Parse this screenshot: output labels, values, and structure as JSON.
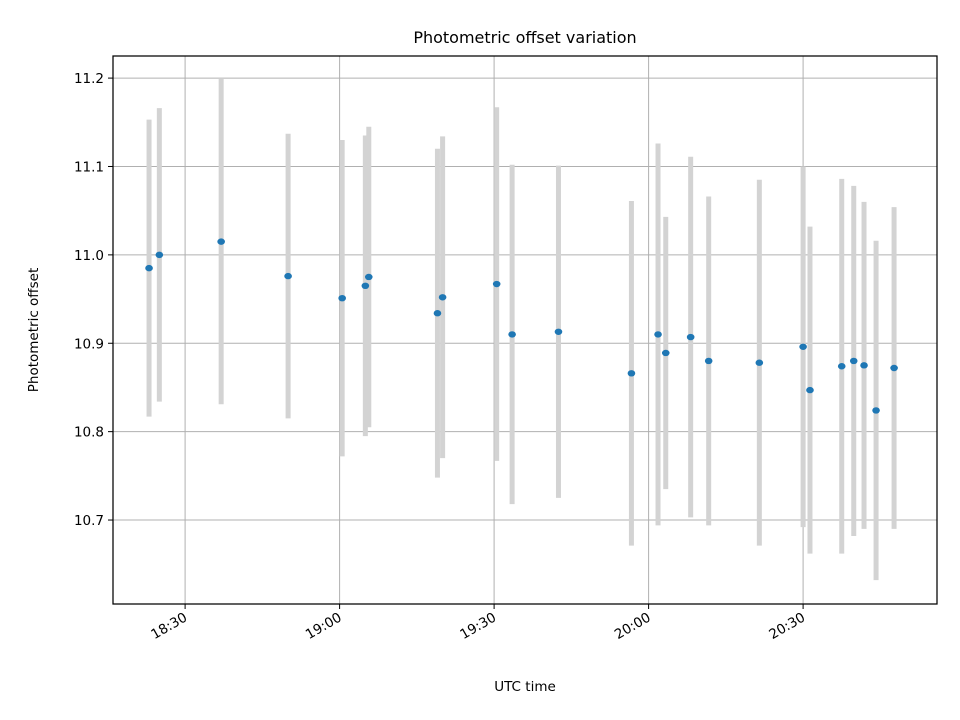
{
  "chart_data": {
    "type": "scatter",
    "title": "Photometric offset variation",
    "xlabel": "UTC time",
    "ylabel": "Photometric offset",
    "x_ticks": [
      "18:30",
      "19:00",
      "19:30",
      "20:00",
      "20:30"
    ],
    "y_ticks": [
      10.7,
      10.8,
      10.9,
      11.0,
      11.1,
      11.2
    ],
    "xlim": [
      "18:16",
      "20:56"
    ],
    "ylim": [
      10.605,
      11.225
    ],
    "grid": true,
    "marker_color": "#1f77b4",
    "errorbar_color": "#d3d3d3",
    "points": [
      {
        "x": "18:23:00",
        "y": 10.985,
        "ylow": 10.817,
        "yhigh": 11.153
      },
      {
        "x": "18:25:00",
        "y": 11.0,
        "ylow": 10.834,
        "yhigh": 11.166
      },
      {
        "x": "18:37:00",
        "y": 11.015,
        "ylow": 10.831,
        "yhigh": 11.199
      },
      {
        "x": "18:50:00",
        "y": 10.976,
        "ylow": 10.815,
        "yhigh": 11.137
      },
      {
        "x": "19:00:30",
        "y": 10.951,
        "ylow": 10.772,
        "yhigh": 11.13
      },
      {
        "x": "19:05:00",
        "y": 10.965,
        "ylow": 10.795,
        "yhigh": 11.135
      },
      {
        "x": "19:05:40",
        "y": 10.975,
        "ylow": 10.805,
        "yhigh": 11.145
      },
      {
        "x": "19:19:00",
        "y": 10.934,
        "ylow": 10.748,
        "yhigh": 11.12
      },
      {
        "x": "19:20:00",
        "y": 10.952,
        "ylow": 10.77,
        "yhigh": 11.134
      },
      {
        "x": "19:30:30",
        "y": 10.967,
        "ylow": 10.767,
        "yhigh": 11.167
      },
      {
        "x": "19:33:30",
        "y": 10.91,
        "ylow": 10.718,
        "yhigh": 11.102
      },
      {
        "x": "19:42:30",
        "y": 10.913,
        "ylow": 10.725,
        "yhigh": 11.101
      },
      {
        "x": "19:56:40",
        "y": 10.866,
        "ylow": 10.671,
        "yhigh": 11.061
      },
      {
        "x": "20:01:50",
        "y": 10.91,
        "ylow": 10.694,
        "yhigh": 11.126
      },
      {
        "x": "20:03:20",
        "y": 10.889,
        "ylow": 10.735,
        "yhigh": 11.043
      },
      {
        "x": "20:08:10",
        "y": 10.907,
        "ylow": 10.703,
        "yhigh": 11.111
      },
      {
        "x": "20:11:40",
        "y": 10.88,
        "ylow": 10.694,
        "yhigh": 11.066
      },
      {
        "x": "20:21:30",
        "y": 10.878,
        "ylow": 10.671,
        "yhigh": 11.085
      },
      {
        "x": "20:30:00",
        "y": 10.896,
        "ylow": 10.692,
        "yhigh": 11.1
      },
      {
        "x": "20:31:20",
        "y": 10.847,
        "ylow": 10.662,
        "yhigh": 11.032
      },
      {
        "x": "20:37:30",
        "y": 10.874,
        "ylow": 10.662,
        "yhigh": 11.086
      },
      {
        "x": "20:39:50",
        "y": 10.88,
        "ylow": 10.682,
        "yhigh": 11.078
      },
      {
        "x": "20:41:50",
        "y": 10.875,
        "ylow": 10.69,
        "yhigh": 11.06
      },
      {
        "x": "20:44:10",
        "y": 10.824,
        "ylow": 10.632,
        "yhigh": 11.016
      },
      {
        "x": "20:47:40",
        "y": 10.872,
        "ylow": 10.69,
        "yhigh": 11.054
      }
    ]
  }
}
